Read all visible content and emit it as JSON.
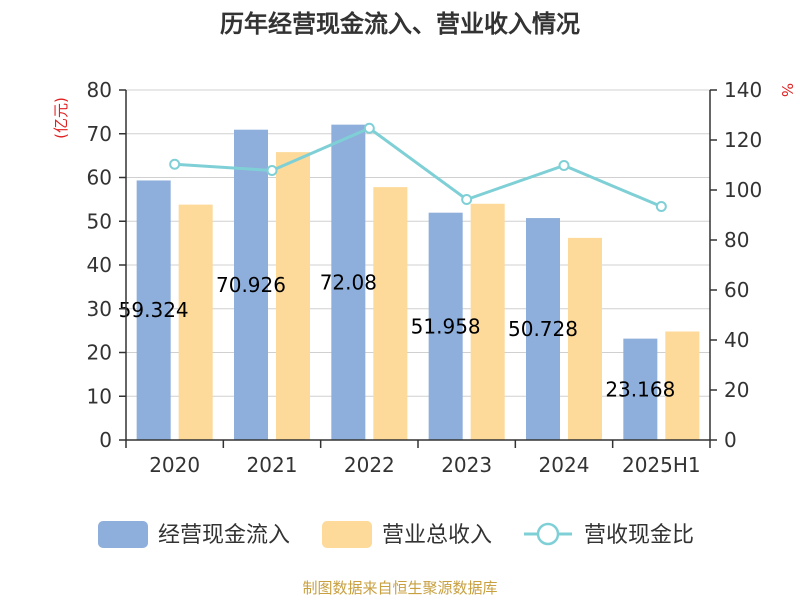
{
  "chart_data": {
    "type": "bar",
    "title": "历年经营现金流入、营业收入情况",
    "categories": [
      "2020",
      "2021",
      "2022",
      "2023",
      "2024",
      "2025H1"
    ],
    "series": [
      {
        "name": "经营现金流入",
        "type": "bar",
        "axis": "left",
        "color": "#8eaedb",
        "values": [
          59.324,
          70.926,
          72.08,
          51.958,
          50.728,
          23.168
        ],
        "labels": [
          "59.324",
          "70.926",
          "72.08",
          "51.958",
          "50.728",
          "23.168"
        ]
      },
      {
        "name": "营业总收入",
        "type": "bar",
        "axis": "left",
        "color": "#fdd99a",
        "values": [
          53.8,
          65.8,
          57.8,
          54.0,
          46.2,
          24.8
        ]
      },
      {
        "name": "营收现金比",
        "type": "line",
        "axis": "right",
        "color": "#7fd0d6",
        "values": [
          110.3,
          107.8,
          124.7,
          96.2,
          109.8,
          93.4
        ]
      }
    ],
    "y_left": {
      "unit_label": "(亿元)",
      "ylim": [
        0,
        80
      ],
      "ticks": [
        0,
        10,
        20,
        30,
        40,
        50,
        60,
        70,
        80
      ]
    },
    "y_right": {
      "unit_label": "%",
      "ylim": [
        0,
        140
      ],
      "ticks": [
        0,
        20,
        40,
        60,
        80,
        100,
        120,
        140
      ]
    },
    "grid": true,
    "legend_position": "bottom"
  },
  "footer": {
    "source": "制图数据来自恒生聚源数据库"
  }
}
